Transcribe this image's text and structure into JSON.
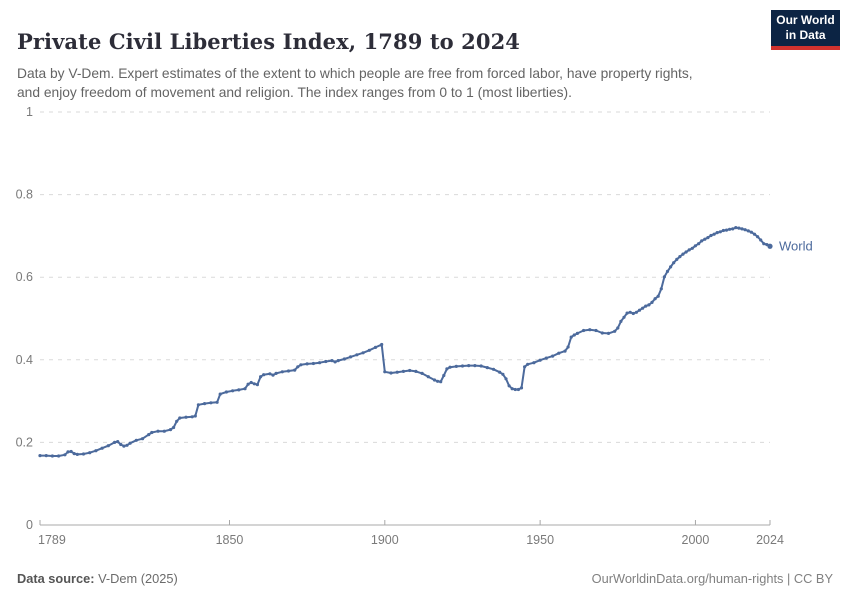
{
  "header": {
    "title": "Private Civil Liberties Index, 1789 to 2024",
    "subtitle": "Data by V-Dem. Expert estimates of the extent to which people are free from forced labor, have property rights,\nand enjoy freedom of movement and religion. The index ranges from 0 to 1 (most liberties).",
    "logo": {
      "line1": "Our World",
      "line2": "in Data",
      "bg_color": "#0c2444",
      "accent_color": "#d1322e"
    }
  },
  "chart_data": {
    "type": "line",
    "title": "Private Civil Liberties Index, 1789 to 2024",
    "xlabel": "",
    "ylabel": "",
    "xlim": [
      1789,
      2024
    ],
    "ylim": [
      0,
      1
    ],
    "x_ticks": [
      1789,
      1850,
      1900,
      1950,
      2000,
      2024
    ],
    "y_ticks": [
      0,
      0.2,
      0.4,
      0.6,
      0.8,
      1
    ],
    "y_tick_labels": [
      "0",
      "0.2",
      "0.4",
      "0.6",
      "0.8",
      "1"
    ],
    "grid": "horizontal-dashed",
    "legend_position": "end-of-line-label",
    "colors": {
      "line": "#4c6a9c",
      "grid": "#dadada",
      "axis": "#a8a8a8",
      "tick_text": "#7a7a7a"
    },
    "series": [
      {
        "name": "World",
        "color": "#4c6a9c",
        "points": [
          [
            1789,
            0.168
          ],
          [
            1791,
            0.168
          ],
          [
            1793,
            0.167
          ],
          [
            1795,
            0.167
          ],
          [
            1797,
            0.17
          ],
          [
            1798,
            0.177
          ],
          [
            1799,
            0.178
          ],
          [
            1800,
            0.173
          ],
          [
            1801,
            0.171
          ],
          [
            1803,
            0.172
          ],
          [
            1805,
            0.175
          ],
          [
            1807,
            0.18
          ],
          [
            1809,
            0.186
          ],
          [
            1811,
            0.192
          ],
          [
            1813,
            0.2
          ],
          [
            1814,
            0.202
          ],
          [
            1815,
            0.195
          ],
          [
            1816,
            0.191
          ],
          [
            1817,
            0.193
          ],
          [
            1818,
            0.198
          ],
          [
            1820,
            0.205
          ],
          [
            1822,
            0.209
          ],
          [
            1824,
            0.219
          ],
          [
            1825,
            0.224
          ],
          [
            1827,
            0.227
          ],
          [
            1829,
            0.227
          ],
          [
            1831,
            0.231
          ],
          [
            1832,
            0.236
          ],
          [
            1833,
            0.251
          ],
          [
            1834,
            0.259
          ],
          [
            1836,
            0.261
          ],
          [
            1838,
            0.262
          ],
          [
            1839,
            0.264
          ],
          [
            1840,
            0.291
          ],
          [
            1842,
            0.294
          ],
          [
            1844,
            0.296
          ],
          [
            1846,
            0.297
          ],
          [
            1847,
            0.317
          ],
          [
            1849,
            0.322
          ],
          [
            1851,
            0.325
          ],
          [
            1853,
            0.327
          ],
          [
            1855,
            0.33
          ],
          [
            1856,
            0.341
          ],
          [
            1857,
            0.345
          ],
          [
            1858,
            0.342
          ],
          [
            1859,
            0.34
          ],
          [
            1860,
            0.359
          ],
          [
            1861,
            0.364
          ],
          [
            1863,
            0.366
          ],
          [
            1864,
            0.363
          ],
          [
            1865,
            0.367
          ],
          [
            1867,
            0.371
          ],
          [
            1869,
            0.373
          ],
          [
            1871,
            0.375
          ],
          [
            1872,
            0.383
          ],
          [
            1873,
            0.388
          ],
          [
            1875,
            0.39
          ],
          [
            1877,
            0.391
          ],
          [
            1879,
            0.393
          ],
          [
            1881,
            0.396
          ],
          [
            1883,
            0.398
          ],
          [
            1884,
            0.395
          ],
          [
            1885,
            0.398
          ],
          [
            1887,
            0.402
          ],
          [
            1889,
            0.407
          ],
          [
            1891,
            0.412
          ],
          [
            1893,
            0.417
          ],
          [
            1895,
            0.423
          ],
          [
            1897,
            0.43
          ],
          [
            1899,
            0.437
          ],
          [
            1900,
            0.371
          ],
          [
            1902,
            0.368
          ],
          [
            1904,
            0.37
          ],
          [
            1906,
            0.372
          ],
          [
            1908,
            0.374
          ],
          [
            1910,
            0.372
          ],
          [
            1912,
            0.367
          ],
          [
            1914,
            0.359
          ],
          [
            1916,
            0.351
          ],
          [
            1917,
            0.348
          ],
          [
            1918,
            0.347
          ],
          [
            1919,
            0.362
          ],
          [
            1920,
            0.378
          ],
          [
            1921,
            0.382
          ],
          [
            1923,
            0.384
          ],
          [
            1925,
            0.385
          ],
          [
            1927,
            0.386
          ],
          [
            1929,
            0.386
          ],
          [
            1931,
            0.385
          ],
          [
            1933,
            0.381
          ],
          [
            1935,
            0.377
          ],
          [
            1937,
            0.37
          ],
          [
            1938,
            0.365
          ],
          [
            1939,
            0.354
          ],
          [
            1940,
            0.337
          ],
          [
            1941,
            0.33
          ],
          [
            1942,
            0.328
          ],
          [
            1943,
            0.328
          ],
          [
            1944,
            0.332
          ],
          [
            1945,
            0.383
          ],
          [
            1946,
            0.389
          ],
          [
            1948,
            0.393
          ],
          [
            1950,
            0.399
          ],
          [
            1952,
            0.404
          ],
          [
            1954,
            0.409
          ],
          [
            1956,
            0.416
          ],
          [
            1958,
            0.421
          ],
          [
            1959,
            0.431
          ],
          [
            1960,
            0.455
          ],
          [
            1961,
            0.46
          ],
          [
            1962,
            0.464
          ],
          [
            1964,
            0.471
          ],
          [
            1966,
            0.473
          ],
          [
            1968,
            0.471
          ],
          [
            1970,
            0.465
          ],
          [
            1972,
            0.464
          ],
          [
            1974,
            0.469
          ],
          [
            1975,
            0.477
          ],
          [
            1976,
            0.493
          ],
          [
            1977,
            0.503
          ],
          [
            1978,
            0.513
          ],
          [
            1979,
            0.515
          ],
          [
            1980,
            0.512
          ],
          [
            1981,
            0.515
          ],
          [
            1982,
            0.52
          ],
          [
            1983,
            0.525
          ],
          [
            1984,
            0.53
          ],
          [
            1985,
            0.533
          ],
          [
            1986,
            0.539
          ],
          [
            1987,
            0.548
          ],
          [
            1988,
            0.554
          ],
          [
            1989,
            0.572
          ],
          [
            1990,
            0.601
          ],
          [
            1991,
            0.614
          ],
          [
            1992,
            0.625
          ],
          [
            1993,
            0.635
          ],
          [
            1994,
            0.643
          ],
          [
            1995,
            0.65
          ],
          [
            1996,
            0.656
          ],
          [
            1997,
            0.661
          ],
          [
            1998,
            0.666
          ],
          [
            1999,
            0.67
          ],
          [
            2000,
            0.676
          ],
          [
            2001,
            0.681
          ],
          [
            2002,
            0.688
          ],
          [
            2003,
            0.692
          ],
          [
            2004,
            0.696
          ],
          [
            2005,
            0.701
          ],
          [
            2006,
            0.704
          ],
          [
            2007,
            0.708
          ],
          [
            2008,
            0.71
          ],
          [
            2009,
            0.713
          ],
          [
            2010,
            0.714
          ],
          [
            2011,
            0.716
          ],
          [
            2012,
            0.717
          ],
          [
            2013,
            0.72
          ],
          [
            2014,
            0.719
          ],
          [
            2015,
            0.717
          ],
          [
            2016,
            0.715
          ],
          [
            2017,
            0.712
          ],
          [
            2018,
            0.709
          ],
          [
            2019,
            0.704
          ],
          [
            2020,
            0.698
          ],
          [
            2021,
            0.69
          ],
          [
            2022,
            0.681
          ],
          [
            2023,
            0.679
          ],
          [
            2024,
            0.675
          ]
        ]
      }
    ]
  },
  "footer": {
    "source_label": "Data source:",
    "source_value": "V-Dem (2025)",
    "link": "OurWorldinData.org/human-rights",
    "separator": " | ",
    "license": "CC BY"
  }
}
